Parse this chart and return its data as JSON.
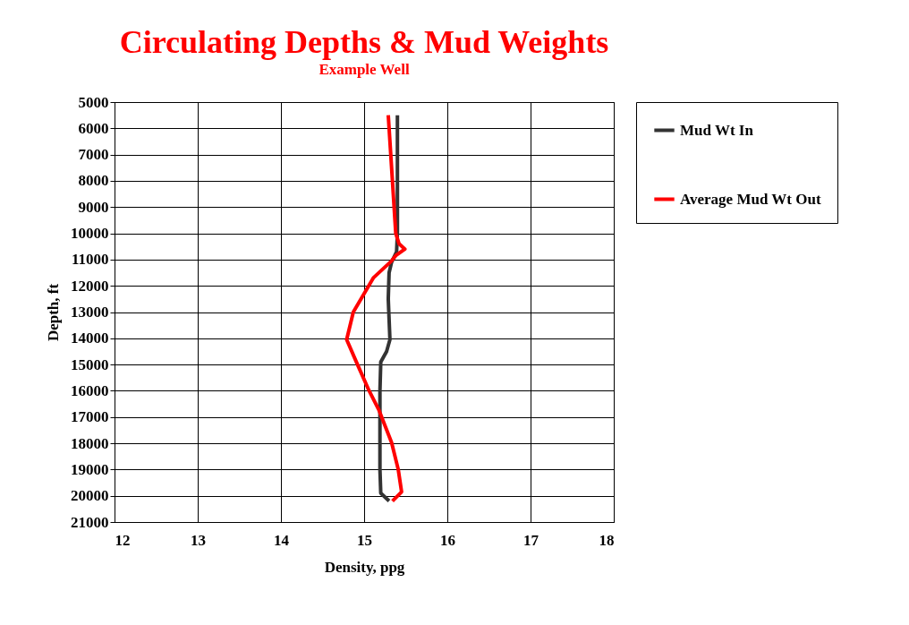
{
  "chart_data": {
    "type": "line",
    "title": "Circulating Depths & Mud Weights",
    "subtitle": "Example Well",
    "xlabel": "Density, ppg",
    "ylabel": "Depth, ft",
    "xlim": [
      12,
      18
    ],
    "xticks": [
      12,
      13,
      14,
      15,
      16,
      17,
      18
    ],
    "ylim": [
      21000,
      5000
    ],
    "yticks": [
      5000,
      6000,
      7000,
      8000,
      9000,
      10000,
      11000,
      12000,
      13000,
      14000,
      15000,
      16000,
      17000,
      18000,
      19000,
      20000,
      21000
    ],
    "grid": true,
    "legend": "right",
    "line_style": "solid",
    "marker": "none",
    "series": [
      {
        "name": "Mud Wt In",
        "color": "#333333",
        "x": [
          15.4,
          15.4,
          15.4,
          15.39,
          15.33,
          15.3,
          15.29,
          15.31,
          15.27,
          15.2,
          15.19,
          15.19,
          15.19,
          15.19,
          15.2,
          15.3
        ],
        "values": [
          5500,
          8000,
          10000,
          10700,
          11100,
          11500,
          12500,
          14050,
          14500,
          14900,
          16000,
          17000,
          18000,
          19000,
          19900,
          20200
        ]
      },
      {
        "name": "Average Mud Wt Out",
        "color": "#ff0000",
        "x": [
          15.29,
          15.34,
          15.38,
          15.42,
          15.49,
          15.38,
          15.33,
          15.11,
          14.87,
          14.79,
          14.92,
          15.06,
          15.18,
          15.33,
          15.41,
          15.45,
          15.34
        ],
        "values": [
          5500,
          8000,
          10000,
          10400,
          10600,
          10850,
          11050,
          11700,
          13000,
          14050,
          15000,
          16000,
          16750,
          17970,
          19000,
          19850,
          20200
        ]
      }
    ]
  }
}
